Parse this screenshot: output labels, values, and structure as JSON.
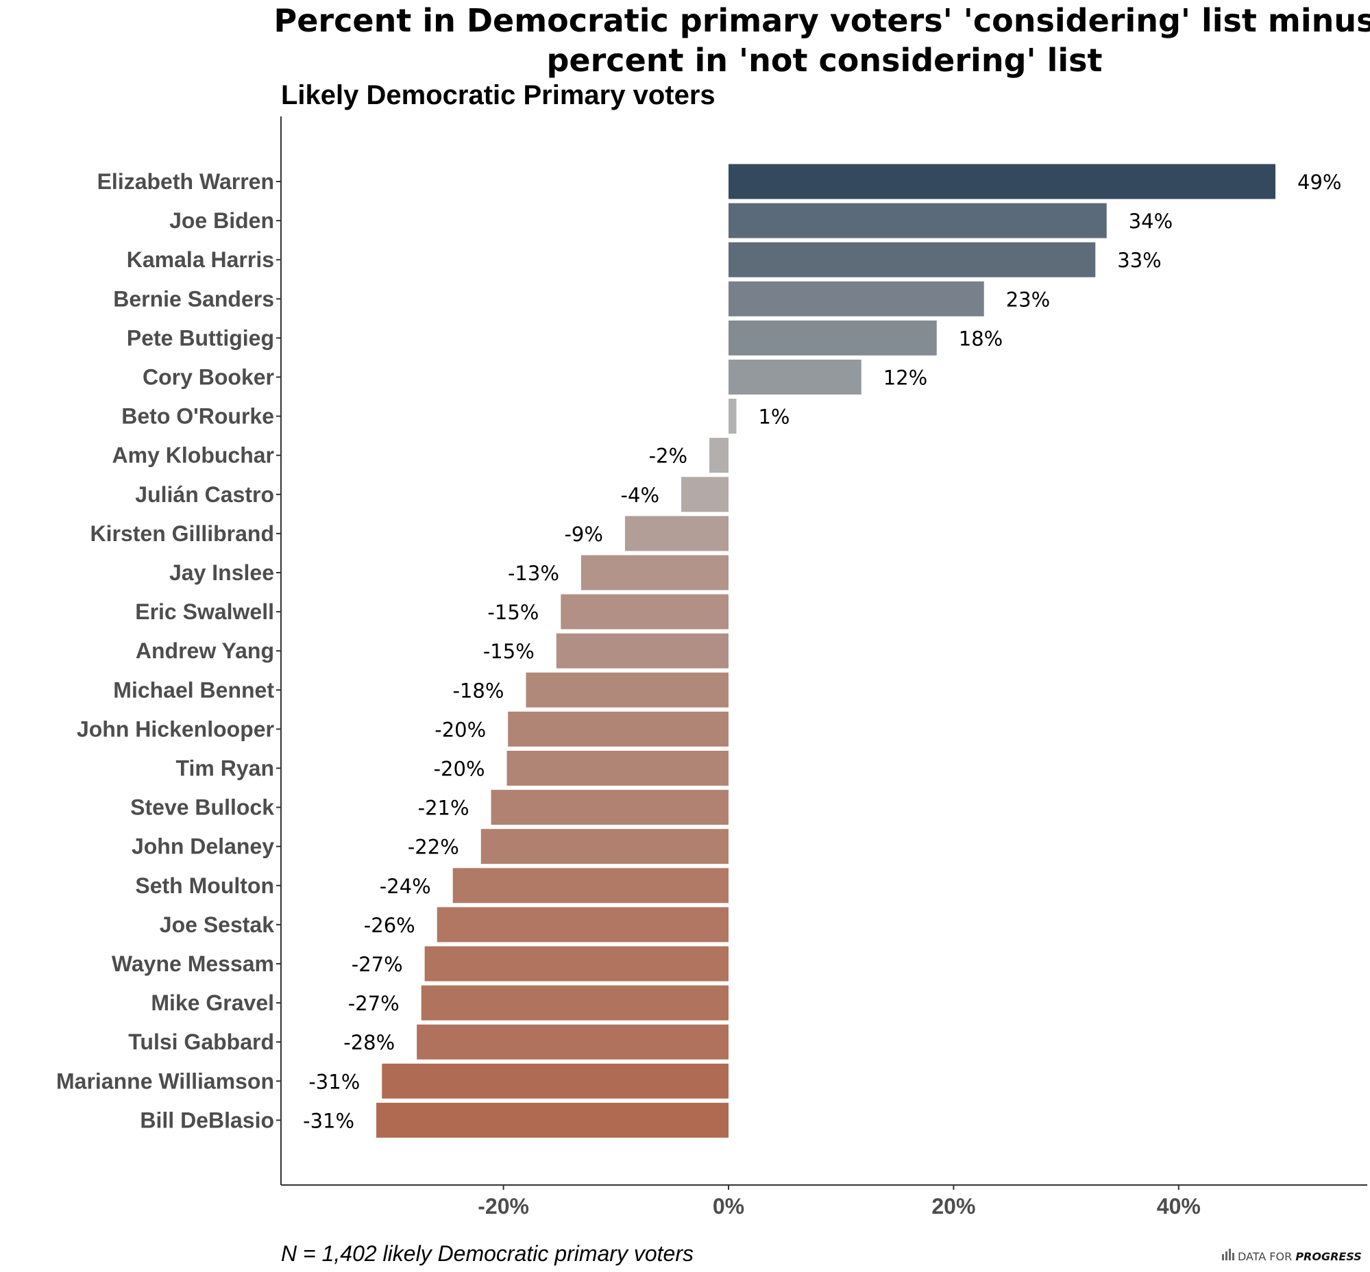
{
  "chart_data": {
    "type": "bar",
    "orientation": "horizontal",
    "title_lines": [
      "Percent in Democratic primary voters' 'considering' list minus",
      "percent in 'not considering' list"
    ],
    "subtitle": "Likely Democratic Primary voters",
    "categories": [
      "Elizabeth Warren",
      "Joe Biden",
      "Kamala Harris",
      "Bernie Sanders",
      "Pete Buttigieg",
      "Cory Booker",
      "Beto O'Rourke",
      "Amy Klobuchar",
      "Julián Castro",
      "Kirsten Gillibrand",
      "Jay Inslee",
      "Eric Swalwell",
      "Andrew Yang",
      "Michael Bennet",
      "John Hickenlooper",
      "Tim Ryan",
      "Steve Bullock",
      "John Delaney",
      "Seth Moulton",
      "Joe Sestak",
      "Wayne Messam",
      "Mike Gravel",
      "Tulsi Gabbard",
      "Marianne Williamson",
      "Bill DeBlasio"
    ],
    "values": [
      48.6,
      33.6,
      32.6,
      22.7,
      18.5,
      11.8,
      0.7,
      -1.7,
      -4.2,
      -9.2,
      -13.1,
      -14.9,
      -15.3,
      -18.0,
      -19.6,
      -19.7,
      -21.1,
      -22.0,
      -24.5,
      -25.9,
      -27.0,
      -27.3,
      -27.7,
      -30.8,
      -31.3
    ],
    "labels": [
      "49%",
      "34%",
      "33%",
      "23%",
      "18%",
      "12%",
      "1%",
      "-2%",
      "-4%",
      "-9%",
      "-13%",
      "-15%",
      "-15%",
      "-18%",
      "-20%",
      "-20%",
      "-21%",
      "-22%",
      "-24%",
      "-26%",
      "-27%",
      "-27%",
      "-28%",
      "-31%",
      "-31%"
    ],
    "xlim": [
      -40,
      57
    ],
    "xticks": [
      -20,
      0,
      20,
      40
    ],
    "xtick_labels": [
      "-20%",
      "0%",
      "20%",
      "40%"
    ],
    "xlabel": "",
    "ylabel": "",
    "colors": {
      "positive_high": "#34495e",
      "neutral": "#b3b3b3",
      "negative_low": "#b06a52"
    },
    "caption": "N = 1,402 likely Democratic primary voters",
    "brand": {
      "prefix": "DATA FOR ",
      "emphasis": "PROGRESS"
    }
  }
}
